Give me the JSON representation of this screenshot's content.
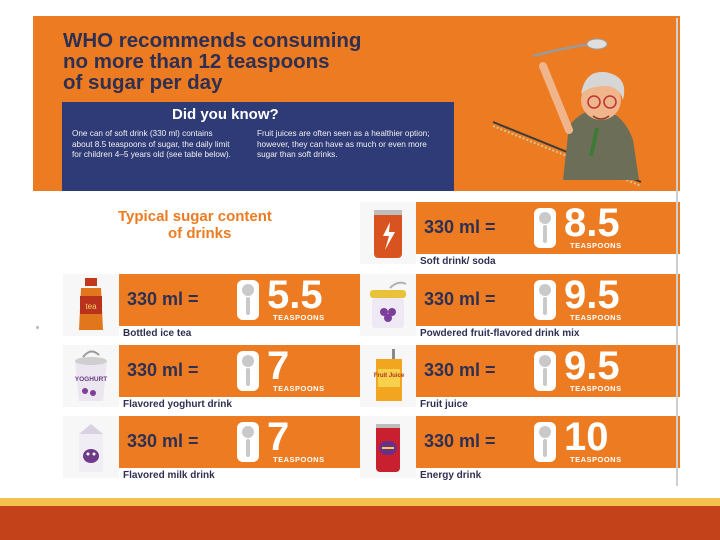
{
  "header": {
    "title_lines": [
      "WHO recommends consuming",
      "no more than 12 teaspoons",
      "of sugar per day"
    ],
    "did_you_know": {
      "title": "Did you know?",
      "col1": "One can of soft drink (330 ml) contains about 8.5 teaspoons of sugar, the daily limit for children 4–5 years old (see table below).",
      "col2": "Fruit juices are often seen as a healthier option; however, they can have as much or even more sugar than soft drinks."
    }
  },
  "section_title": [
    "Typical sugar content",
    "of drinks"
  ],
  "colors": {
    "orange": "#ec7b22",
    "navy": "#2e3b77",
    "text_dark": "#2f2f52",
    "footer": "#c4421a",
    "footer_stripe": "#f4c24c"
  },
  "drinks": [
    {
      "amount": "330 ml  =",
      "teaspoons": "8.5",
      "unit": "TEASPOONS",
      "label": "Soft drink/ soda",
      "icon": "soda-can-icon"
    },
    {
      "amount": "330 ml  =",
      "teaspoons": "5.5",
      "unit": "TEASPOONS",
      "label": "Bottled  ice tea",
      "icon": "ice-tea-bottle-icon"
    },
    {
      "amount": "330 ml  =",
      "teaspoons": "9.5",
      "unit": "TEASPOONS",
      "label": "Powdered fruit-flavored drink mix",
      "icon": "drink-mix-jar-icon"
    },
    {
      "amount": "330 ml  =",
      "teaspoons": "7",
      "unit": "TEASPOONS",
      "label": "Flavored yoghurt drink",
      "icon": "yoghurt-cup-icon"
    },
    {
      "amount": "330 ml  =",
      "teaspoons": "9.5",
      "unit": "TEASPOONS",
      "label": "Fruit juice",
      "icon": "juice-box-icon"
    },
    {
      "amount": "330 ml  =",
      "teaspoons": "7",
      "unit": "TEASPOONS",
      "label": "Flavored milk drink",
      "icon": "milk-carton-icon"
    },
    {
      "amount": "330 ml  =",
      "teaspoons": "10",
      "unit": "TEASPOONS",
      "label": "Energy drink",
      "icon": "energy-drink-can-icon"
    }
  ],
  "thumb_texts": {
    "ice_tea": "tea",
    "yoghurt": "YOGHURT",
    "juice": "Fruit Juice"
  }
}
